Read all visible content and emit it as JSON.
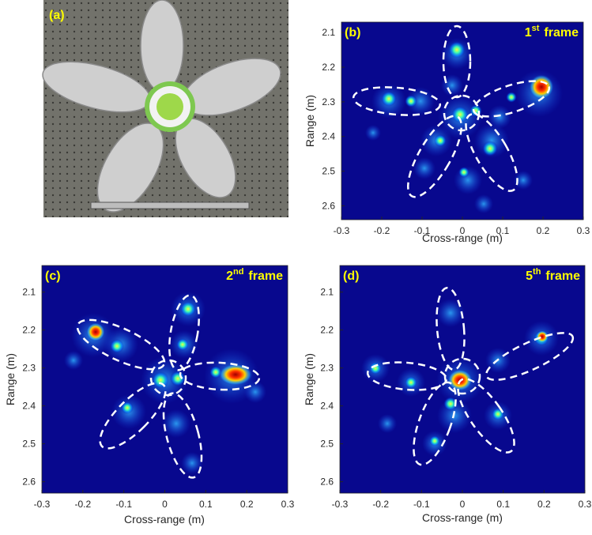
{
  "photo": {
    "label": "(a)"
  },
  "chart_data": [
    {
      "type": "heatmap",
      "panel_label": "(b)",
      "frame": {
        "number": "1",
        "suffix": "st",
        "word": "frame"
      },
      "xlabel": "Cross-range (m)",
      "ylabel": "Range (m)",
      "xlim": [
        -0.3,
        0.3
      ],
      "ylim": [
        2.07,
        2.64
      ],
      "y_reversed": true,
      "xticks": [
        -0.3,
        -0.2,
        -0.1,
        0,
        0.1,
        0.2,
        0.3
      ],
      "yticks": [
        2.1,
        2.2,
        2.3,
        2.4,
        2.5,
        2.6
      ]
    },
    {
      "type": "heatmap",
      "panel_label": "(c)",
      "frame": {
        "number": "2",
        "suffix": "nd",
        "word": "frame"
      },
      "xlabel": "Cross-range (m)",
      "ylabel": "Range (m)",
      "xlim": [
        -0.3,
        0.3
      ],
      "ylim": [
        2.03,
        2.63
      ],
      "y_reversed": true,
      "xticks": [
        -0.3,
        -0.2,
        -0.1,
        0,
        0.1,
        0.2,
        0.3
      ],
      "yticks": [
        2.1,
        2.2,
        2.3,
        2.4,
        2.5,
        2.6
      ]
    },
    {
      "type": "heatmap",
      "panel_label": "(d)",
      "frame": {
        "number": "5",
        "suffix": "th",
        "word": "frame"
      },
      "xlabel": "Cross-range (m)",
      "ylabel": "Range (m)",
      "xlim": [
        -0.3,
        0.3
      ],
      "ylim": [
        2.03,
        2.63
      ],
      "y_reversed": true,
      "xticks": [
        -0.3,
        -0.2,
        -0.1,
        0,
        0.1,
        0.2,
        0.3
      ],
      "yticks": [
        2.1,
        2.2,
        2.3,
        2.4,
        2.5,
        2.6
      ]
    }
  ]
}
